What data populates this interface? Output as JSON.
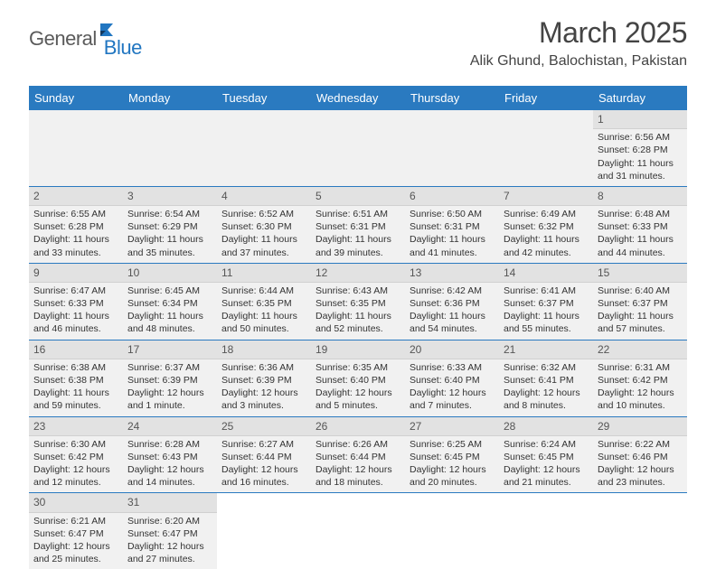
{
  "logo": {
    "part1": "General",
    "part2": "Blue"
  },
  "title": "March 2025",
  "location": "Alik Ghund, Balochistan, Pakistan",
  "colors": {
    "header_bg": "#2a7ac0",
    "header_text": "#ffffff",
    "cell_bg": "#f1f1f1",
    "daynum_bg": "#e2e2e2",
    "border": "#2a7ac0",
    "logo_gray": "#5a5a5a",
    "logo_blue": "#2176c1"
  },
  "day_headers": [
    "Sunday",
    "Monday",
    "Tuesday",
    "Wednesday",
    "Thursday",
    "Friday",
    "Saturday"
  ],
  "weeks": [
    [
      null,
      null,
      null,
      null,
      null,
      null,
      {
        "n": "1",
        "sr": "6:56 AM",
        "ss": "6:28 PM",
        "dh": "11",
        "dm": "31"
      }
    ],
    [
      {
        "n": "2",
        "sr": "6:55 AM",
        "ss": "6:28 PM",
        "dh": "11",
        "dm": "33"
      },
      {
        "n": "3",
        "sr": "6:54 AM",
        "ss": "6:29 PM",
        "dh": "11",
        "dm": "35"
      },
      {
        "n": "4",
        "sr": "6:52 AM",
        "ss": "6:30 PM",
        "dh": "11",
        "dm": "37"
      },
      {
        "n": "5",
        "sr": "6:51 AM",
        "ss": "6:31 PM",
        "dh": "11",
        "dm": "39"
      },
      {
        "n": "6",
        "sr": "6:50 AM",
        "ss": "6:31 PM",
        "dh": "11",
        "dm": "41"
      },
      {
        "n": "7",
        "sr": "6:49 AM",
        "ss": "6:32 PM",
        "dh": "11",
        "dm": "42"
      },
      {
        "n": "8",
        "sr": "6:48 AM",
        "ss": "6:33 PM",
        "dh": "11",
        "dm": "44"
      }
    ],
    [
      {
        "n": "9",
        "sr": "6:47 AM",
        "ss": "6:33 PM",
        "dh": "11",
        "dm": "46"
      },
      {
        "n": "10",
        "sr": "6:45 AM",
        "ss": "6:34 PM",
        "dh": "11",
        "dm": "48"
      },
      {
        "n": "11",
        "sr": "6:44 AM",
        "ss": "6:35 PM",
        "dh": "11",
        "dm": "50"
      },
      {
        "n": "12",
        "sr": "6:43 AM",
        "ss": "6:35 PM",
        "dh": "11",
        "dm": "52"
      },
      {
        "n": "13",
        "sr": "6:42 AM",
        "ss": "6:36 PM",
        "dh": "11",
        "dm": "54"
      },
      {
        "n": "14",
        "sr": "6:41 AM",
        "ss": "6:37 PM",
        "dh": "11",
        "dm": "55"
      },
      {
        "n": "15",
        "sr": "6:40 AM",
        "ss": "6:37 PM",
        "dh": "11",
        "dm": "57"
      }
    ],
    [
      {
        "n": "16",
        "sr": "6:38 AM",
        "ss": "6:38 PM",
        "dh": "11",
        "dm": "59"
      },
      {
        "n": "17",
        "sr": "6:37 AM",
        "ss": "6:39 PM",
        "dh": "12",
        "dm": "1"
      },
      {
        "n": "18",
        "sr": "6:36 AM",
        "ss": "6:39 PM",
        "dh": "12",
        "dm": "3"
      },
      {
        "n": "19",
        "sr": "6:35 AM",
        "ss": "6:40 PM",
        "dh": "12",
        "dm": "5"
      },
      {
        "n": "20",
        "sr": "6:33 AM",
        "ss": "6:40 PM",
        "dh": "12",
        "dm": "7"
      },
      {
        "n": "21",
        "sr": "6:32 AM",
        "ss": "6:41 PM",
        "dh": "12",
        "dm": "8"
      },
      {
        "n": "22",
        "sr": "6:31 AM",
        "ss": "6:42 PM",
        "dh": "12",
        "dm": "10"
      }
    ],
    [
      {
        "n": "23",
        "sr": "6:30 AM",
        "ss": "6:42 PM",
        "dh": "12",
        "dm": "12"
      },
      {
        "n": "24",
        "sr": "6:28 AM",
        "ss": "6:43 PM",
        "dh": "12",
        "dm": "14"
      },
      {
        "n": "25",
        "sr": "6:27 AM",
        "ss": "6:44 PM",
        "dh": "12",
        "dm": "16"
      },
      {
        "n": "26",
        "sr": "6:26 AM",
        "ss": "6:44 PM",
        "dh": "12",
        "dm": "18"
      },
      {
        "n": "27",
        "sr": "6:25 AM",
        "ss": "6:45 PM",
        "dh": "12",
        "dm": "20"
      },
      {
        "n": "28",
        "sr": "6:24 AM",
        "ss": "6:45 PM",
        "dh": "12",
        "dm": "21"
      },
      {
        "n": "29",
        "sr": "6:22 AM",
        "ss": "6:46 PM",
        "dh": "12",
        "dm": "23"
      }
    ],
    [
      {
        "n": "30",
        "sr": "6:21 AM",
        "ss": "6:47 PM",
        "dh": "12",
        "dm": "25"
      },
      {
        "n": "31",
        "sr": "6:20 AM",
        "ss": "6:47 PM",
        "dh": "12",
        "dm": "27"
      },
      null,
      null,
      null,
      null,
      null
    ]
  ],
  "labels": {
    "sunrise": "Sunrise:",
    "sunset": "Sunset:",
    "daylight": "Daylight:",
    "hours": "hours",
    "and": "and",
    "minutes": "minutes.",
    "minute": "minute."
  }
}
